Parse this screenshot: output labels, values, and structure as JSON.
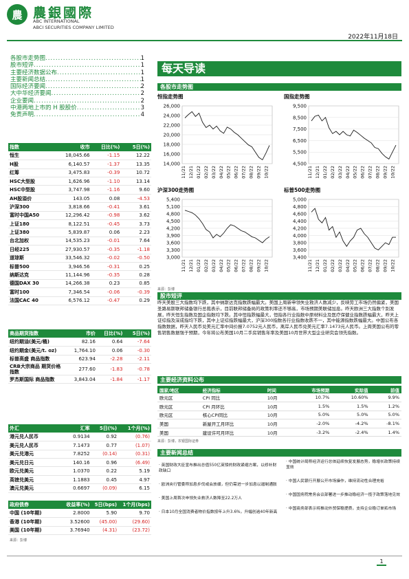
{
  "header": {
    "logo_char": "農",
    "name_cn": "農銀國際",
    "name_en1": "ABC INTERNATIONAL",
    "name_en2": "ABCI SECURITIES COMPANY LIMITED",
    "date": "2022年11月18日"
  },
  "toc": [
    {
      "label": "各股市走势图",
      "page": "1"
    },
    {
      "label": "股市短评",
      "page": "1"
    },
    {
      "label": "主要经济数据公布",
      "page": "1"
    },
    {
      "label": "主要新闻总结",
      "page": "1"
    },
    {
      "label": "国际经济要闻",
      "page": "2"
    },
    {
      "label": "大中华经济要闻",
      "page": "2"
    },
    {
      "label": "企业要闻",
      "page": "2"
    },
    {
      "label": "中港两地上市的 H 股股价",
      "page": "3"
    },
    {
      "label": "免责声明",
      "page": "4"
    }
  ],
  "title": "每天导读",
  "stock_section": "各股市走势图",
  "charts": [
    {
      "title": "恒指走势图",
      "yticks": [
        "26,000",
        "24,000",
        "22,000",
        "20,000",
        "18,000",
        "16,000",
        "14,000"
      ],
      "ymin": 14000,
      "ymax": 26000,
      "series": [
        23500,
        24200,
        24800,
        23800,
        24500,
        22600,
        21500,
        22000,
        21200,
        21800,
        20800,
        20300,
        21600,
        21200,
        20500,
        20000,
        19300,
        18600,
        17900,
        17500,
        16400,
        15300,
        14800,
        16200,
        17800
      ]
    },
    {
      "title": "国指走势图",
      "yticks": [
        "9,500",
        "8,500",
        "7,500",
        "6,500",
        "5,500",
        "4,500"
      ],
      "ymin": 4500,
      "ymax": 9500,
      "series": [
        8200,
        8600,
        8700,
        8200,
        8500,
        7600,
        7100,
        7300,
        7000,
        7300,
        7000,
        6900,
        7400,
        7200,
        6950,
        6700,
        6500,
        6300,
        5900,
        5800,
        5400,
        5100,
        4900,
        5500,
        6100
      ]
    },
    {
      "title": "沪深300走势图",
      "yticks": [
        "5,400",
        "5,100",
        "4,800",
        "4,500",
        "4,200",
        "3,900",
        "3,600",
        "3,300",
        "3,000"
      ],
      "ymin": 3000,
      "ymax": 5400,
      "series": [
        4950,
        4900,
        4850,
        4750,
        4600,
        4400,
        4150,
        4050,
        3800,
        3950,
        3850,
        4000,
        4200,
        4350,
        4300,
        4200,
        4100,
        4050,
        3950,
        3850,
        3800,
        3700,
        3600,
        3750,
        3850
      ]
    },
    {
      "title": "标普500走势图",
      "yticks": [
        "5,000",
        "4,800",
        "4,600",
        "4,400",
        "4,200",
        "4,000",
        "3,800",
        "3,600",
        "3,400"
      ],
      "ymin": 3400,
      "ymax": 5000,
      "series": [
        4650,
        4750,
        4450,
        4350,
        4500,
        4150,
        4250,
        3950,
        4100,
        3850,
        3700,
        3850,
        3950,
        4150,
        4200,
        4050,
        3950,
        3800,
        3650,
        3600,
        3700,
        3800,
        3750,
        3950,
        3950
      ]
    }
  ],
  "chart_xticks": [
    "11/21",
    "12/21",
    "01/22",
    "02/22",
    "03/22",
    "04/22",
    "05/22",
    "06/22",
    "07/22",
    "08/22",
    "09/22",
    "10/22"
  ],
  "chart_source": "来源：彭博",
  "index_table": {
    "headers": [
      "指数",
      "收市",
      "日比(%)",
      "5日(%)"
    ],
    "rows": [
      [
        "恒生",
        "18,045.66",
        "-1.15",
        "12.22"
      ],
      [
        "H股",
        "6,140.57",
        "-1.37",
        "13.35"
      ],
      [
        "红筹",
        "3,475.83",
        "-0.39",
        "10.72"
      ],
      [
        "HSC大型股",
        "1,626.96",
        "-1.10",
        "13.14"
      ],
      [
        "HSC中型股",
        "3,747.98",
        "-1.16",
        "9.60"
      ],
      [
        "AH股溢价",
        "143.05",
        "0.08",
        "-4.53"
      ],
      [
        "沪深300",
        "3,818.66",
        "-0.41",
        "3.61"
      ],
      [
        "富时中国A50",
        "12,296.42",
        "-0.98",
        "3.62"
      ],
      [
        "上证180",
        "8,122.51",
        "-0.45",
        "3.73"
      ],
      [
        "上证380",
        "5,839.87",
        "0.06",
        "2.23"
      ],
      [
        "台北加权",
        "14,535.23",
        "-0.01",
        "7.64"
      ],
      [
        "日经225",
        "27,930.57",
        "-0.35",
        "-1.18"
      ],
      [
        "道琼斯",
        "33,546.32",
        "-0.02",
        "-0.50"
      ],
      [
        "标普500",
        "3,946.56",
        "-0.31",
        "0.25"
      ],
      [
        "纳斯达克",
        "11,144.96",
        "-0.35",
        "0.28"
      ],
      [
        "德国DAX 30",
        "14,266.38",
        "0.23",
        "0.85"
      ],
      [
        "富时100",
        "7,346.54",
        "-0.06",
        "-0.39"
      ],
      [
        "法国CAC 40",
        "6,576.12",
        "-0.47",
        "0.29"
      ]
    ]
  },
  "commodity_table": {
    "headers": [
      "商品期货指数",
      "市价",
      "日比(%)",
      "5日(%)"
    ],
    "rows": [
      [
        "纽约期油(美元/桶)",
        "82.16",
        "0.64",
        "-7.64"
      ],
      [
        "纽约期金(美元/t. oz)",
        "1,764.10",
        "0.06",
        "-0.30"
      ],
      [
        "标普高盛 商品指数",
        "623.94",
        "-2.28",
        "-2.11"
      ],
      [
        "CRB大宗商品 期货价格指数",
        "277.60",
        "-1.83",
        "-0.78"
      ],
      [
        "罗杰斯国际 商品指数",
        "3,843.04",
        "-1.84",
        "-1.17"
      ]
    ]
  },
  "fx_table": {
    "headers": [
      "外汇",
      "汇率",
      "5日(%)",
      "1个月(%)"
    ],
    "rows": [
      [
        "港元兑人民币",
        "0.9134",
        "0.92",
        "(0.76)"
      ],
      [
        "美元兑人民币",
        "7.1473",
        "0.77",
        "(1.07)"
      ],
      [
        "美元兑港元",
        "7.8252",
        "(0.14)",
        "(0.31)"
      ],
      [
        "美元兑日元",
        "140.16",
        "0.96",
        "(6.49)"
      ],
      [
        "欧元兑美元",
        "1.0370",
        "0.22",
        "5.19"
      ],
      [
        "英镑兑美元",
        "1.1883",
        "0.45",
        "4.97"
      ],
      [
        "澳元兑美元",
        "0.6697",
        "(0.09)",
        "6.15"
      ]
    ]
  },
  "bond_table": {
    "headers": [
      "政府债券",
      "收益率(%)",
      "5日(bps)",
      "1个月(bps)"
    ],
    "rows": [
      [
        "中国 (10年期)",
        "2.8000",
        "5.90",
        "9.70"
      ],
      [
        "香港 (10年期)",
        "3.52600",
        "(45.00)",
        "(29.60)"
      ],
      [
        "美国 (10年期)",
        "3.76940",
        "(4.31)",
        "(23.72)"
      ]
    ]
  },
  "left_source": "来源：彭博",
  "commentary": {
    "title": "股市短评",
    "text": "昨天美股三大指数均下跌，其中纳斯达克指数跌幅最大。美国上周新申领失业救济人数减少，反映劳工市场仍然偏紧，美国圣路易斯联邦储备银行总裁表示，目前联邦储备局的政策利率还不够高，市场预期美联储加息。昨天欧洲三大指数个别发展，昨天恒生指数及国企指数均下跌。其中恒指跌幅最大，恒指各行业指数中原材料业及医疗保健业指数跌幅最大，昨天上证综指及深成指均下跌，其中上证综指跌幅最大，沪深300指数各行业指数收跌不一，其中能源指数跌幅最大。中国公布各指数数据，昨天人民币兑美元汇率中间价报7.0752元人民币，离岸人民币兑美元汇率7.1473元人民币。上周美国公布的零售销售数据强于预期，今年将公布美国10月二手房销售年率及美国10月世界大型企业研究会领先指数。"
  },
  "economic_table": {
    "title": "主要经济资料公布",
    "headers": [
      "国家/地区",
      "经济指标",
      "时间",
      "市场预期",
      "实际值",
      "前值"
    ],
    "rows": [
      [
        "欧元区",
        "CPI 同比",
        "10月",
        "10.7%",
        "10.60%",
        "9.9%"
      ],
      [
        "欧元区",
        "CPI 月环比",
        "10月",
        "1.5%",
        "1.5%",
        "1.2%"
      ],
      [
        "欧元区",
        "核心CPI同比",
        "10月",
        "5.0%",
        "5.0%",
        "5.0%"
      ],
      [
        "美国",
        "新屋开工月环比",
        "10月",
        "-2.0%",
        "-4.2%",
        "-8.1%"
      ],
      [
        "美国",
        "建设许可月环比",
        "10月",
        "-3.2%",
        "-2.4%",
        "1.4%"
      ]
    ],
    "source": "来源：彭博，农银国际证券"
  },
  "news": {
    "title": "主要新闻总结",
    "left": [
      "· 英国财政大臣宣布推出总值550亿英镑的财政紧缩方案，以修补财政缺口",
      "· 欧洲央行管委称加息步伐或会放缓，但仍需进一步加息以遏制通胀",
      "· 美国上周首次申领失业救济人数降至22.2万人",
      "· 日本10月全国消费者物价指数按年上升3.6%，升幅创逾40年新高"
    ],
    "right": [
      "· 中国统计局称经济运行总体延续恢复发展态势，稳增长政策持续显效",
      "· 中国人民银行开展公开市场操作，维持流动性合理充裕",
      "· 中国国务院常务会议部署进一步推动稳经济一揽子政策落地见效",
      "· 中国商务部表示将推动外贸保稳提质，支持企业稳订单拓市场"
    ]
  },
  "page_number": "1"
}
